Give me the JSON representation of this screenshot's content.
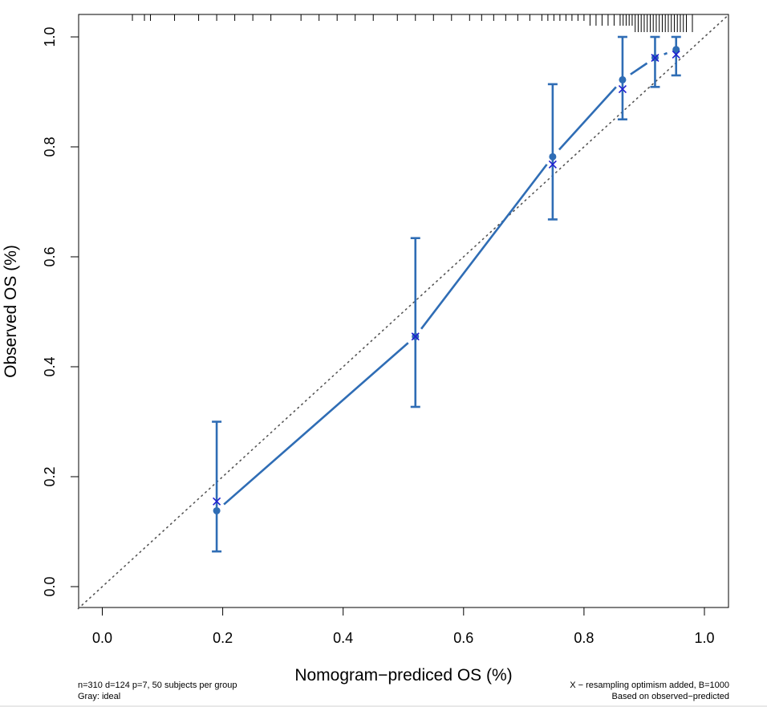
{
  "chart_data": {
    "type": "calibration",
    "xlabel": "Nomogram−prediced OS (%)",
    "ylabel": "Observed OS (%)",
    "xlim": [
      -0.04,
      1.04
    ],
    "ylim": [
      -0.04,
      1.04
    ],
    "x_ticks": [
      0.0,
      0.2,
      0.4,
      0.6,
      0.8,
      1.0
    ],
    "x_tick_labels": [
      "0.0",
      "0.2",
      "0.4",
      "0.6",
      "0.8",
      "1.0"
    ],
    "y_ticks": [
      0.0,
      0.2,
      0.4,
      0.6,
      0.8,
      1.0
    ],
    "y_tick_labels": [
      "0.0",
      "0.2",
      "0.4",
      "0.6",
      "0.8",
      "1.0"
    ],
    "grid": false,
    "ideal_line": {
      "style": "dotted",
      "color": "#555555",
      "from": [
        -0.04,
        -0.04
      ],
      "to": [
        1.04,
        1.04
      ]
    },
    "observed": {
      "color": "#2f6db5",
      "x": [
        0.19,
        0.52,
        0.748,
        0.864,
        0.918,
        0.953
      ],
      "y": [
        0.138,
        0.455,
        0.782,
        0.922,
        0.962,
        0.977
      ],
      "lower": [
        0.064,
        0.327,
        0.668,
        0.85,
        0.909,
        0.93
      ],
      "upper": [
        0.3,
        0.634,
        0.914,
        1.0,
        1.0,
        1.0
      ]
    },
    "corrected": {
      "color": "#1f1fd0",
      "marker": "x",
      "x": [
        0.19,
        0.52,
        0.748,
        0.864,
        0.918,
        0.953
      ],
      "y": [
        0.155,
        0.455,
        0.768,
        0.905,
        0.962,
        0.968
      ]
    },
    "rug_top": [
      0.05,
      0.07,
      0.08,
      0.12,
      0.16,
      0.19,
      0.22,
      0.25,
      0.28,
      0.33,
      0.36,
      0.39,
      0.42,
      0.45,
      0.49,
      0.52,
      0.55,
      0.58,
      0.61,
      0.63,
      0.65,
      0.67,
      0.69,
      0.71,
      0.73,
      0.74,
      0.75,
      0.76,
      0.77,
      0.78,
      0.79,
      0.8,
      0.81,
      0.82,
      0.83,
      0.84,
      0.85,
      0.86,
      0.865,
      0.87,
      0.875,
      0.88,
      0.885,
      0.89,
      0.895,
      0.9,
      0.905,
      0.91,
      0.915,
      0.92,
      0.925,
      0.93,
      0.935,
      0.94,
      0.945,
      0.95,
      0.955,
      0.96,
      0.965,
      0.97,
      0.98
    ]
  },
  "footnotes": {
    "left_1": "n=310 d=124 p=7, 50 subjects per group",
    "left_2": "Gray: ideal",
    "right_1": "X − resampling optimism added, B=1000",
    "right_2": "Based on observed−predicted"
  }
}
